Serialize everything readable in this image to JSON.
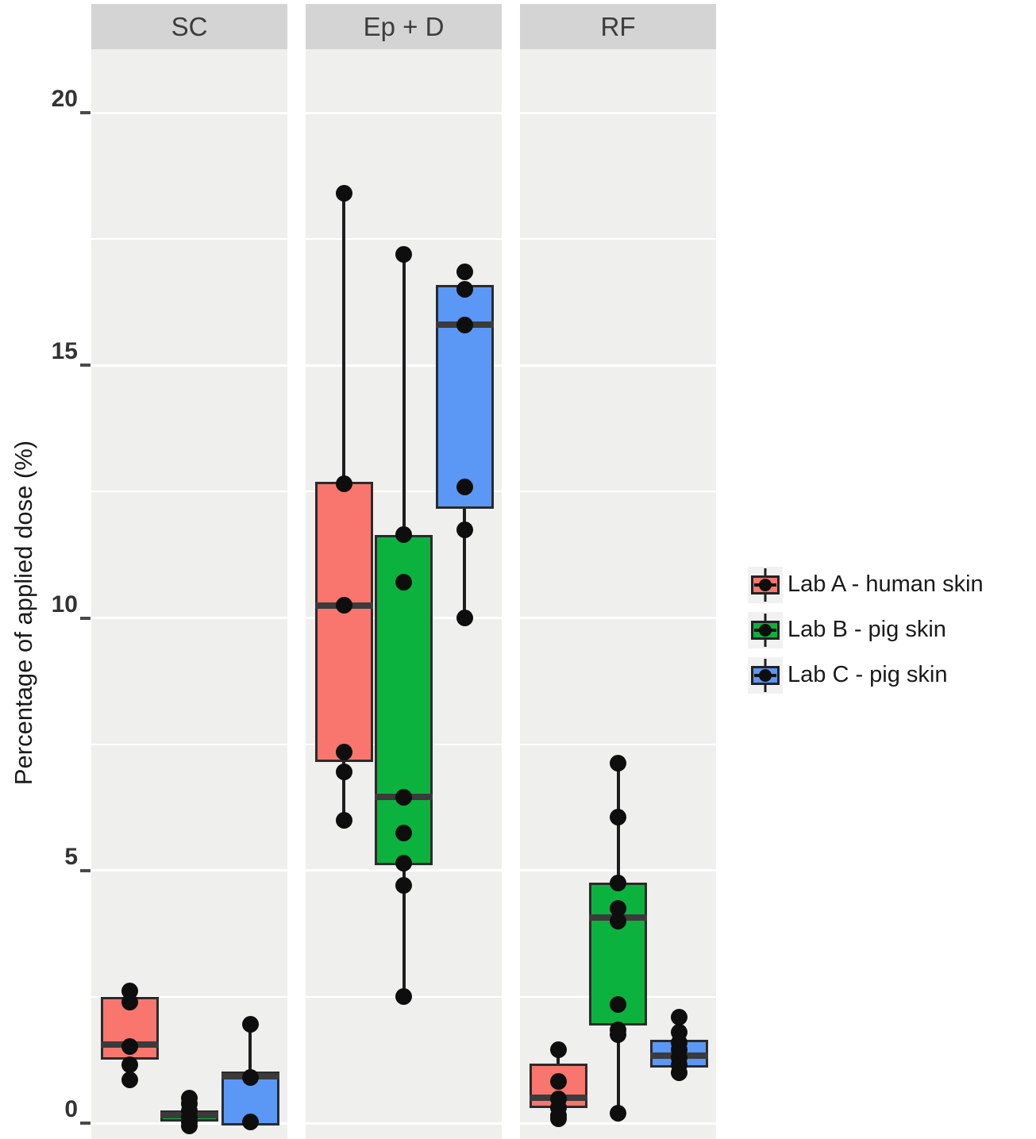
{
  "figure": {
    "y_axis_title": "Percentage of applied dose (%)"
  },
  "legend": {
    "items": [
      {
        "label": "Lab A - human skin",
        "color": "#F8766D"
      },
      {
        "label": "Lab B - pig skin",
        "color": "#0CB23E"
      },
      {
        "label": "Lab C - pig skin",
        "color": "#5B97F5"
      }
    ]
  },
  "chart_data": {
    "type": "boxplot",
    "title": "",
    "xlabel": "",
    "ylabel": "Percentage of applied dose (%)",
    "y_ticks": [
      0,
      5,
      10,
      15,
      20
    ],
    "y_minor_ticks": [
      2.5,
      7.5,
      12.5,
      17.5
    ],
    "ylim": [
      -0.3,
      21.3
    ],
    "grid": "white major and minor horizontal gridlines on light-gray panel",
    "legend_position": "right",
    "series_names": [
      "Lab A - human skin",
      "Lab B - pig skin",
      "Lab C - pig skin"
    ],
    "facets": [
      {
        "label": "SC",
        "boxes": [
          {
            "series": "Lab A - human skin",
            "q1": 1.3,
            "median": 1.55,
            "q3": 2.45,
            "whisker_low": 0.85,
            "whisker_high": 2.62,
            "points": [
              2.62,
              2.4,
              1.52,
              1.15,
              0.85
            ]
          },
          {
            "series": "Lab B - pig skin",
            "q1": 0.08,
            "median": 0.15,
            "q3": 0.2,
            "whisker_low": 0.0,
            "whisker_high": 0.3,
            "points": [
              0.5,
              0.38,
              0.25,
              0.12,
              0.02,
              -0.05
            ]
          },
          {
            "series": "Lab C - pig skin",
            "q1": 0.0,
            "median": 0.93,
            "q3": 0.98,
            "whisker_low": 0.0,
            "whisker_high": 1.96,
            "points": [
              1.96,
              0.9,
              0.03
            ]
          }
        ]
      },
      {
        "label": "Ep + D",
        "boxes": [
          {
            "series": "Lab A - human skin",
            "q1": 7.2,
            "median": 10.25,
            "q3": 12.65,
            "whisker_low": 6.0,
            "whisker_high": 18.4,
            "points": [
              18.4,
              12.65,
              10.25,
              7.35,
              6.95,
              6.0
            ]
          },
          {
            "series": "Lab B - pig skin",
            "q1": 5.15,
            "median": 6.45,
            "q3": 11.6,
            "whisker_low": 2.5,
            "whisker_high": 17.2,
            "points": [
              17.2,
              11.65,
              10.7,
              6.45,
              5.75,
              5.15,
              4.7,
              2.5
            ]
          },
          {
            "series": "Lab C - pig skin",
            "q1": 12.2,
            "median": 15.8,
            "q3": 16.55,
            "whisker_low": 10.0,
            "whisker_high": 16.55,
            "points": [
              16.85,
              16.5,
              15.8,
              12.6,
              11.75,
              10.0
            ]
          }
        ]
      },
      {
        "label": "RF",
        "boxes": [
          {
            "series": "Lab A - human skin",
            "q1": 0.35,
            "median": 0.5,
            "q3": 1.13,
            "whisker_low": 0.08,
            "whisker_high": 1.46,
            "points": [
              1.46,
              0.83,
              0.48,
              0.3,
              0.15,
              0.08
            ]
          },
          {
            "series": "Lab B - pig skin",
            "q1": 1.98,
            "median": 4.07,
            "q3": 4.71,
            "whisker_low": 0.19,
            "whisker_high": 7.13,
            "points": [
              7.13,
              6.05,
              4.75,
              4.25,
              4.0,
              2.35,
              1.85,
              1.75,
              0.19
            ]
          },
          {
            "series": "Lab C - pig skin",
            "q1": 1.15,
            "median": 1.34,
            "q3": 1.6,
            "whisker_low": 1.0,
            "whisker_high": 2.1,
            "points": [
              2.1,
              1.8,
              1.6,
              1.45,
              1.3,
              1.15,
              1.0
            ]
          }
        ]
      }
    ]
  }
}
